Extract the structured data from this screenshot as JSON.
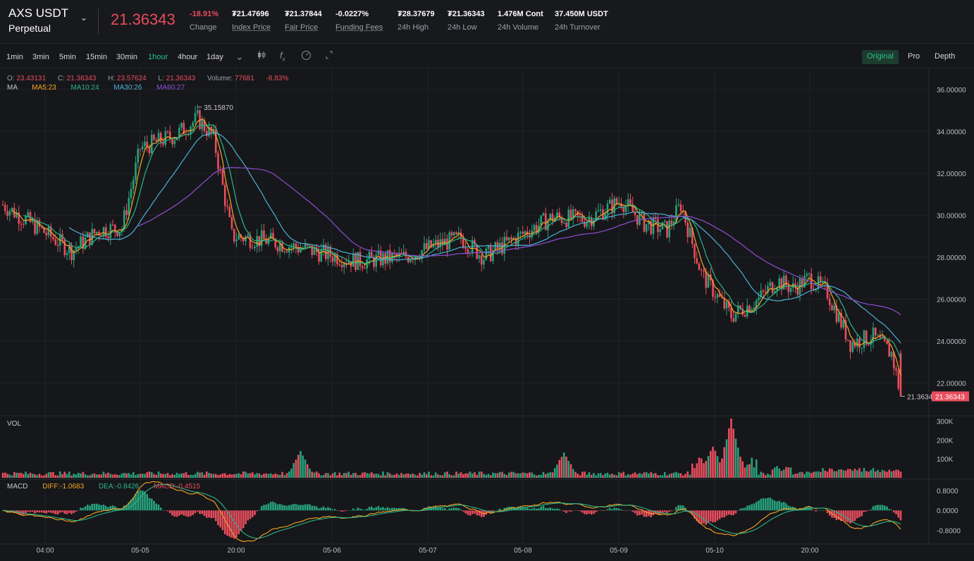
{
  "header": {
    "symbol": "AXS USDT",
    "subtitle": "Perpetual",
    "dropdown_icon": "chevron-down-icon",
    "last_price": "21.36343",
    "stats": [
      {
        "value": "-18.91%",
        "label": "Change",
        "neg": true,
        "underline": false
      },
      {
        "value": "₮21.47696",
        "label": "Index Price",
        "neg": false,
        "underline": true
      },
      {
        "value": "₮21.37844",
        "label": "Fair Price",
        "neg": false,
        "underline": true
      },
      {
        "value": "-0.0227%",
        "label": "Funding Fees",
        "neg": false,
        "underline": true
      },
      {
        "value": "₮28.37679",
        "label": "24h High",
        "neg": false,
        "underline": false
      },
      {
        "value": "₮21.36343",
        "label": "24h Low",
        "neg": false,
        "underline": false
      },
      {
        "value": "1.476M Cont",
        "label": "24h Volume",
        "neg": false,
        "underline": false
      },
      {
        "value": "37.450M USDT",
        "label": "24h Turnover",
        "neg": false,
        "underline": false
      }
    ]
  },
  "toolbar": {
    "timeframes": [
      "1min",
      "3min",
      "5min",
      "15min",
      "30min",
      "1hour",
      "4hour",
      "1day"
    ],
    "active_timeframe": "1hour",
    "icons": [
      "chevron-down-icon",
      "candlestick-icon",
      "function-icon",
      "gauge-icon",
      "expand-icon"
    ],
    "views": [
      "Original",
      "Pro",
      "Depth"
    ],
    "active_view": "Original"
  },
  "ohlc": {
    "open_label": "O:",
    "open": "23.43131",
    "close_label": "C:",
    "close": "21.36343",
    "high_label": "H:",
    "high": "23.57624",
    "low_label": "L:",
    "low": "21.36343",
    "volume_label": "Volume:",
    "volume": "77681",
    "change": "-8.83%"
  },
  "ma_legend": {
    "label": "MA",
    "ma5": "MA5:23",
    "ma10": "MA10:24",
    "ma30": "MA30:26",
    "ma60": "MA60:27"
  },
  "vol_label": "VOL",
  "macd_legend": {
    "label": "MACD",
    "diff": "DIFF:-1.0683",
    "dea": "DEA:-0.8426",
    "macd": "MACD:-0.4515"
  },
  "annotations": {
    "max_price": "35.15870",
    "min_price": "21.3634",
    "last_tag": "21.36343"
  },
  "price_axis": [
    "36.00000",
    "34.00000",
    "32.00000",
    "30.00000",
    "28.00000",
    "26.00000",
    "24.00000",
    "22.00000"
  ],
  "volume_axis": [
    "300K",
    "200K",
    "100K"
  ],
  "macd_axis": [
    "0.8000",
    "0.0000",
    "-0.8000"
  ],
  "time_axis": [
    "04:00",
    "05-05",
    "20:00",
    "05-06",
    "05-07",
    "05-08",
    "05-09",
    "05-10",
    "20:00"
  ],
  "colors": {
    "up": "#26a17b",
    "down": "#e84d5e",
    "ma5": "#f5a623",
    "ma10": "#2bb58a",
    "ma30": "#4db0d8",
    "ma60": "#8e4fd4",
    "bg": "#16171a",
    "grid": "#222327"
  },
  "chart_data": {
    "type": "candlestick",
    "price_range": [
      20.5,
      36.5
    ],
    "volume_range": [
      0,
      320000
    ],
    "macd_range": [
      -1.3,
      1.2
    ],
    "key_points": [
      {
        "t": 0,
        "price": 30.5
      },
      {
        "t": 18,
        "price": 29.2
      },
      {
        "t": 30,
        "price": 28.3
      },
      {
        "t": 42,
        "price": 29.3
      },
      {
        "t": 52,
        "price": 29.4
      },
      {
        "t": 60,
        "price": 33.2
      },
      {
        "t": 75,
        "price": 33.8
      },
      {
        "t": 85,
        "price": 34.6
      },
      {
        "t": 92,
        "price": 33.7
      },
      {
        "t": 100,
        "price": 29.0
      },
      {
        "t": 115,
        "price": 28.8
      },
      {
        "t": 135,
        "price": 28.3
      },
      {
        "t": 155,
        "price": 27.8
      },
      {
        "t": 175,
        "price": 28.0
      },
      {
        "t": 190,
        "price": 28.6
      },
      {
        "t": 200,
        "price": 28.9
      },
      {
        "t": 210,
        "price": 28.0
      },
      {
        "t": 230,
        "price": 29.3
      },
      {
        "t": 240,
        "price": 29.9
      },
      {
        "t": 255,
        "price": 29.8
      },
      {
        "t": 270,
        "price": 30.7
      },
      {
        "t": 280,
        "price": 29.6
      },
      {
        "t": 290,
        "price": 29.3
      },
      {
        "t": 296,
        "price": 30.5
      },
      {
        "t": 305,
        "price": 27.2
      },
      {
        "t": 318,
        "price": 25.2
      },
      {
        "t": 330,
        "price": 26.0
      },
      {
        "t": 338,
        "price": 26.9
      },
      {
        "t": 345,
        "price": 26.5
      },
      {
        "t": 352,
        "price": 27.0
      },
      {
        "t": 360,
        "price": 26.3
      },
      {
        "t": 370,
        "price": 23.9
      },
      {
        "t": 380,
        "price": 24.2
      },
      {
        "t": 388,
        "price": 23.4
      },
      {
        "t": 392,
        "price": 21.4
      }
    ],
    "volume_spikes": [
      {
        "t": 130,
        "volume": 140000
      },
      {
        "t": 245,
        "volume": 130000
      },
      {
        "t": 318,
        "volume": 305000
      },
      {
        "t": 310,
        "volume": 160000
      }
    ],
    "ma_last": {
      "ma5": 23,
      "ma10": 24,
      "ma30": 26,
      "ma60": 27
    }
  }
}
